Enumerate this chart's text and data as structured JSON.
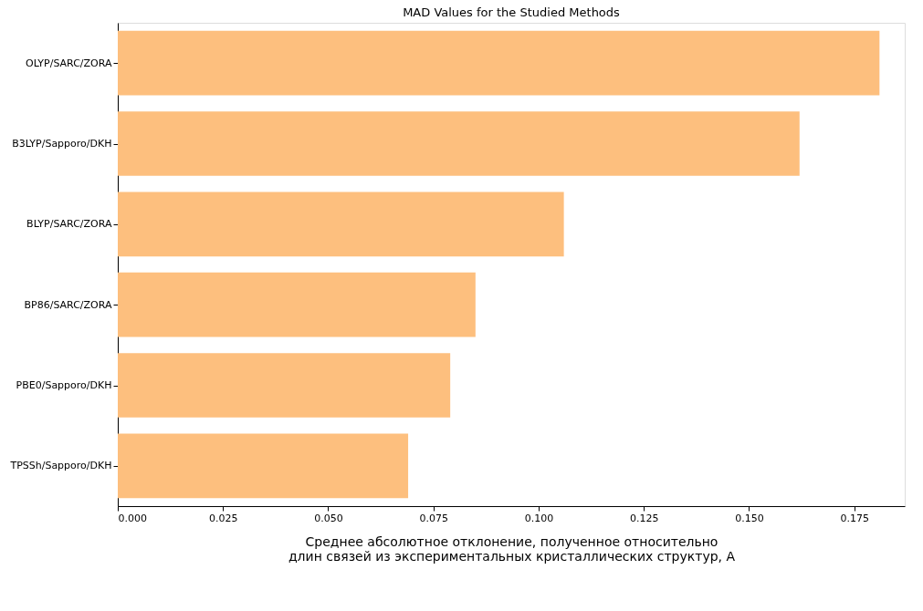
{
  "chart_data": {
    "type": "bar",
    "orientation": "horizontal",
    "title": "MAD Values for the Studied Methods",
    "xlabel": "Среднее абсолютное отклонение, полученное относительно\nдлин связей из экспериментальных кристаллических структур, А",
    "categories": [
      "OLYP/SARC/ZORA",
      "B3LYP/Sapporo/DKH",
      "BLYP/SARC/ZORA",
      "BP86/SARC/ZORA",
      "PBE0/Sapporo/DKH",
      "TPSSh/Sapporo/DKH"
    ],
    "values": [
      0.181,
      0.162,
      0.106,
      0.085,
      0.079,
      0.069
    ],
    "color": "#fdbf7e",
    "xlim": [
      0,
      0.187
    ],
    "xticks": [
      {
        "value": 0,
        "label": "0.000"
      },
      {
        "value": 0.025,
        "label": "0.025"
      },
      {
        "value": 0.05,
        "label": "0.050"
      },
      {
        "value": 0.075,
        "label": "0.075"
      },
      {
        "value": 0.1,
        "label": "0.100"
      },
      {
        "value": 0.125,
        "label": "0.125"
      },
      {
        "value": 0.15,
        "label": "0.150"
      },
      {
        "value": 0.175,
        "label": "0.175"
      }
    ],
    "grid": false
  }
}
